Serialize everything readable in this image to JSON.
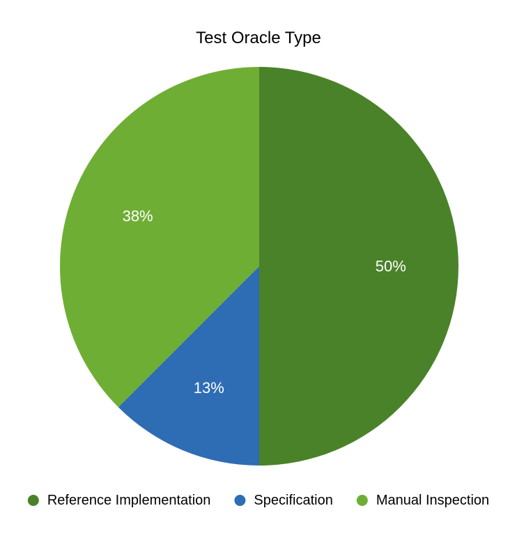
{
  "chart_data": {
    "type": "pie",
    "title": "Test Oracle Type",
    "categories": [
      "Reference Implementation",
      "Specification",
      "Manual Inspection"
    ],
    "values": [
      50,
      12.5,
      37.5
    ],
    "labels": [
      "50%",
      "13%",
      "38%"
    ],
    "colors": [
      "#4a8229",
      "#2e6db4",
      "#6fae35"
    ],
    "start_angle_deg": 0,
    "direction": "clockwise",
    "legend_position": "bottom"
  }
}
